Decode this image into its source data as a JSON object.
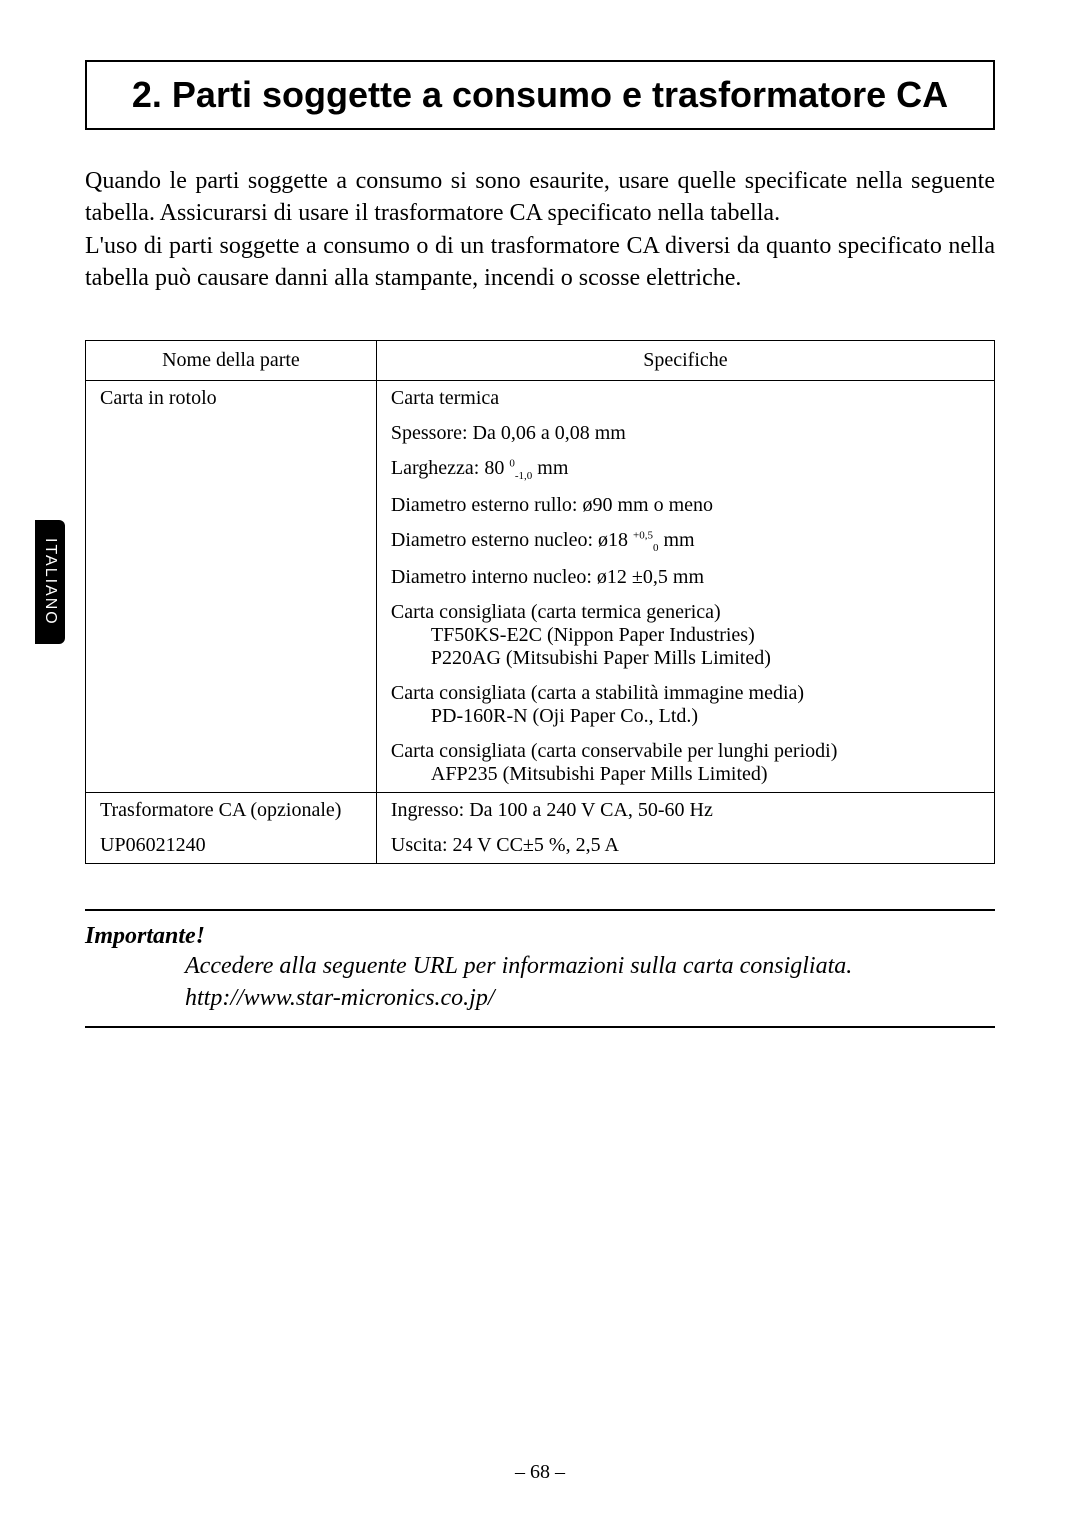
{
  "sideTab": "ITALIANO",
  "title": "2. Parti soggette a consumo e trasformatore CA",
  "intro": {
    "p1": "Quando le parti soggette a consumo si sono esaurite, usare quelle specificate nella seguente tabella. Assicurarsi di usare il trasformatore CA specificato nella tabella.",
    "p2": "L'uso di parti soggette a consumo o di un trasformatore CA diversi da quanto specificato nella tabella può causare danni alla stampante, incendi o scosse elettriche."
  },
  "table": {
    "headers": {
      "name": "Nome della parte",
      "spec": "Specifiche"
    },
    "paper": {
      "name": "Carta in rotolo",
      "line1": "Carta termica",
      "line2": "Spessore: Da 0,06 a 0,08 mm",
      "line3_pre": "Larghezza: 80 ",
      "line3_sup": "0",
      "line3_sub": "-1,0",
      "line3_post": " mm",
      "line4": "Diametro esterno rullo: ø90 mm o meno",
      "line5_pre": "Diametro esterno nucleo: ø18 ",
      "line5_sup": "+0,5",
      "line5_sub": "0",
      "line5_post": " mm",
      "line6": "Diametro interno nucleo: ø12 ±0,5 mm",
      "line7": "Carta consigliata (carta termica generica)",
      "line7a": "TF50KS-E2C (Nippon Paper Industries)",
      "line7b": "P220AG (Mitsubishi Paper Mills Limited)",
      "line8": "Carta consigliata (carta a stabilità immagine media)",
      "line8a": "PD-160R-N (Oji Paper Co., Ltd.)",
      "line9": "Carta consigliata (carta conservabile per lunghi periodi)",
      "line9a": "AFP235 (Mitsubishi Paper Mills Limited)"
    },
    "transformer": {
      "name1": "Trasformatore CA (opzionale)",
      "name2": "UP06021240",
      "spec1": "Ingresso: Da 100 a 240 V CA, 50-60 Hz",
      "spec2": "Uscita: 24 V CC±5 %, 2,5 A"
    }
  },
  "importante": {
    "label": "Importante!",
    "text1": "Accedere alla seguente URL per informazioni sulla carta consigliata.",
    "text2": "http://www.star-micronics.co.jp/"
  },
  "pageNumber": "– 68 –"
}
